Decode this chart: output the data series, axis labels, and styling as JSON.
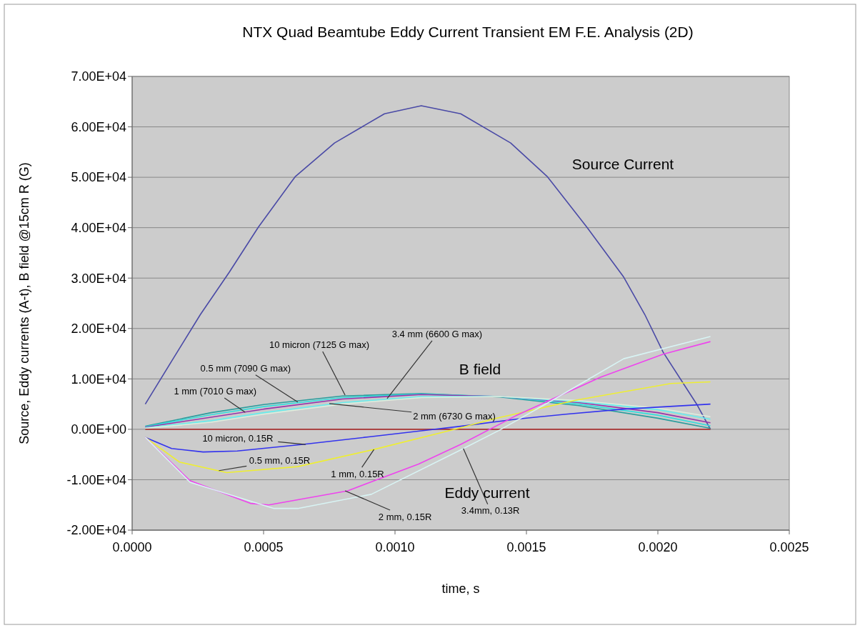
{
  "chart_data": {
    "type": "line",
    "title": "NTX Quad Beamtube Eddy Current Transient EM F.E. Analysis (2D)",
    "xlabel": "time, s",
    "ylabel": "Source, Eddy currents (A-t), B field @15cm R (G)",
    "xlim": [
      0,
      0.0025
    ],
    "xticks": [
      {
        "value": 0,
        "label": "0.0000"
      },
      {
        "value": 0.0005,
        "label": "0.0005"
      },
      {
        "value": 0.001,
        "label": "0.0010"
      },
      {
        "value": 0.0015,
        "label": "0.0015"
      },
      {
        "value": 0.002,
        "label": "0.0020"
      },
      {
        "value": 0.0025,
        "label": "0.0025"
      }
    ],
    "ylim": [
      -20000,
      70000
    ],
    "yticks": [
      {
        "value": -20000,
        "label": "-2.00E+04"
      },
      {
        "value": -10000,
        "label": "-1.00E+04"
      },
      {
        "value": 0,
        "label": "0.00E+00"
      },
      {
        "value": 10000,
        "label": "1.00E+04"
      },
      {
        "value": 20000,
        "label": "2.00E+04"
      },
      {
        "value": 30000,
        "label": "3.00E+04"
      },
      {
        "value": 40000,
        "label": "4.00E+04"
      },
      {
        "value": 50000,
        "label": "5.00E+04"
      },
      {
        "value": 60000,
        "label": "6.00E+04"
      },
      {
        "value": 70000,
        "label": "7.00E+04"
      }
    ],
    "grid": "y",
    "marker": "none",
    "line_style": "solid",
    "series": [
      {
        "color": "#4a4aa6",
        "x": [
          5e-05,
          0.00015,
          0.00026,
          0.00037,
          0.00048,
          0.00062,
          0.00077,
          0.00096,
          0.0011,
          0.00125,
          0.00144,
          0.00158,
          0.00173,
          0.00187,
          0.00195,
          0.00202,
          0.00215,
          0.0022
        ],
        "values": [
          5000,
          13500,
          22800,
          31200,
          40100,
          50100,
          56800,
          62600,
          64200,
          62600,
          56800,
          50100,
          40100,
          30200,
          22800,
          15300,
          4800,
          0
        ]
      },
      {
        "color": "#2a9d9d",
        "x": [
          5e-05,
          0.0003,
          0.0005,
          0.0008,
          0.0011,
          0.0014,
          0.0017,
          0.002,
          0.0022
        ],
        "values": [
          600,
          3300,
          4900,
          6600,
          7100,
          6400,
          4700,
          2200,
          200
        ]
      },
      {
        "color": "#33dddd",
        "x": [
          5e-05,
          0.0003,
          0.0005,
          0.0008,
          0.0011,
          0.0014,
          0.0017,
          0.002,
          0.0022
        ],
        "values": [
          500,
          2900,
          4500,
          6300,
          7000,
          6500,
          5000,
          2800,
          700
        ]
      },
      {
        "color": "#9933aa",
        "x": [
          5e-05,
          0.0003,
          0.0005,
          0.0008,
          0.0011,
          0.0014,
          0.0017,
          0.002,
          0.0022
        ],
        "values": [
          400,
          2400,
          4000,
          6000,
          6900,
          6500,
          5300,
          3300,
          1300
        ]
      },
      {
        "color": "#66eeee",
        "x": [
          5e-05,
          0.0003,
          0.0005,
          0.0008,
          0.0011,
          0.0014,
          0.0017,
          0.002,
          0.0022
        ],
        "values": [
          300,
          1700,
          3300,
          5300,
          6500,
          6500,
          5500,
          3900,
          2000
        ]
      },
      {
        "color": "#ddeedd",
        "x": [
          5e-05,
          0.0003,
          0.0005,
          0.0008,
          0.0011,
          0.0014,
          0.0017,
          0.002,
          0.0022
        ],
        "values": [
          200,
          1400,
          3000,
          5000,
          6300,
          6500,
          5700,
          4200,
          2500
        ]
      },
      {
        "color": "#aa3333",
        "x": [
          5e-05,
          0.0022
        ],
        "values": [
          0,
          0
        ]
      },
      {
        "color": "#3333ee",
        "x": [
          5e-05,
          0.00015,
          0.00027,
          0.0004,
          0.00065,
          0.0009,
          0.0011,
          0.00125,
          0.00146,
          0.00165,
          0.00187,
          0.0022
        ],
        "values": [
          -1600,
          -3800,
          -4500,
          -4300,
          -3000,
          -1500,
          -300,
          600,
          2000,
          3000,
          4000,
          5000
        ]
      },
      {
        "color": "#eeee33",
        "x": [
          5e-05,
          0.00018,
          0.00036,
          0.00063,
          0.00092,
          0.00125,
          0.00137,
          0.00169,
          0.00205,
          0.0022
        ],
        "values": [
          -1600,
          -6500,
          -8600,
          -7400,
          -4000,
          300,
          2000,
          5800,
          9100,
          9400
        ]
      },
      {
        "color": "#ee44ee",
        "x": [
          5e-05,
          0.00022,
          0.00045,
          0.00052,
          0.00082,
          0.00109,
          0.00125,
          0.00146,
          0.00178,
          0.00202,
          0.0022
        ],
        "values": [
          -1600,
          -10200,
          -14700,
          -15000,
          -12200,
          -6900,
          -3000,
          2700,
          10300,
          14900,
          17400
        ]
      },
      {
        "color": "#d8f4f4",
        "x": [
          5e-05,
          0.00022,
          0.00054,
          0.00063,
          0.00091,
          0.00125,
          0.0014,
          0.0016,
          0.00187,
          0.0022
        ],
        "values": [
          -1600,
          -10500,
          -15700,
          -15700,
          -12900,
          -4100,
          -100,
          5800,
          14000,
          18400
        ]
      }
    ],
    "annotations": [
      {
        "text": "3.4 mm (6600 G max)",
        "x": 0.00097,
        "y": 6100
      },
      {
        "text": "10 micron (7125 G max)",
        "x": 0.00081,
        "y": 6800
      },
      {
        "text": "0.5 mm (7090 G max)",
        "x": 0.00063,
        "y": 5400
      },
      {
        "text": "1 mm (7010 G max)",
        "x": 0.00043,
        "y": 3400
      },
      {
        "text": "2 mm (6730 G max)",
        "x": 0.00075,
        "y": 5100
      },
      {
        "text": "10 micron, 0.15R",
        "x": 0.00066,
        "y": -3000
      },
      {
        "text": "0.5 mm, 0.15R",
        "x": 0.00033,
        "y": -8200
      },
      {
        "text": "1 mm, 0.15R",
        "x": 0.00092,
        "y": -4000
      },
      {
        "text": "2 mm, 0.15R",
        "x": 0.00081,
        "y": -12200
      },
      {
        "text": "3.4mm, 0.13R",
        "x": 0.00126,
        "y": -3800
      },
      "Source Current",
      "B field",
      "Eddy current"
    ]
  }
}
